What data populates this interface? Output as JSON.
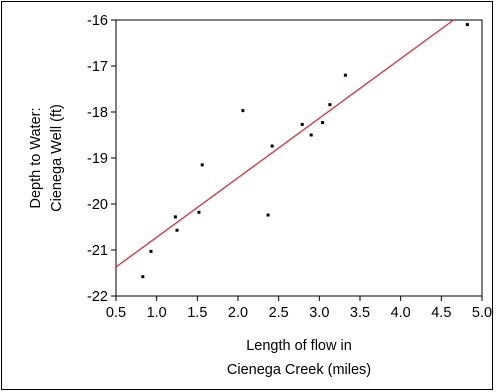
{
  "chart_data": {
    "type": "scatter",
    "xlabel": [
      "Length of flow in",
      "Cienega Creek (miles)"
    ],
    "ylabel": [
      "Depth to Water:",
      "Cienega Well (ft)"
    ],
    "xlim": [
      0.5,
      5.0
    ],
    "ylim": [
      -22,
      -16
    ],
    "xticks": [
      "0.5",
      "1.0",
      "1.5",
      "2.0",
      "2.5",
      "3.0",
      "3.5",
      "4.0",
      "4.5",
      "5.0"
    ],
    "yticks": [
      "-16",
      "-17",
      "-18",
      "-19",
      "-20",
      "-21",
      "-22"
    ],
    "grid": false,
    "points": [
      {
        "x": 0.83,
        "y": -21.58
      },
      {
        "x": 0.93,
        "y": -21.03
      },
      {
        "x": 1.23,
        "y": -20.28
      },
      {
        "x": 1.25,
        "y": -20.57
      },
      {
        "x": 1.52,
        "y": -20.18
      },
      {
        "x": 1.56,
        "y": -19.15
      },
      {
        "x": 2.06,
        "y": -17.97
      },
      {
        "x": 2.37,
        "y": -20.24
      },
      {
        "x": 2.42,
        "y": -18.74
      },
      {
        "x": 2.79,
        "y": -18.27
      },
      {
        "x": 2.9,
        "y": -18.5
      },
      {
        "x": 3.04,
        "y": -18.23
      },
      {
        "x": 3.13,
        "y": -17.84
      },
      {
        "x": 3.32,
        "y": -17.2
      },
      {
        "x": 4.82,
        "y": -16.1
      }
    ],
    "fit_line": {
      "x": [
        0.5,
        4.65
      ],
      "y": [
        -21.37,
        -16.0
      ],
      "color": "#d9303a"
    },
    "colors": {
      "points": "#000000",
      "axes": "#000000"
    }
  }
}
